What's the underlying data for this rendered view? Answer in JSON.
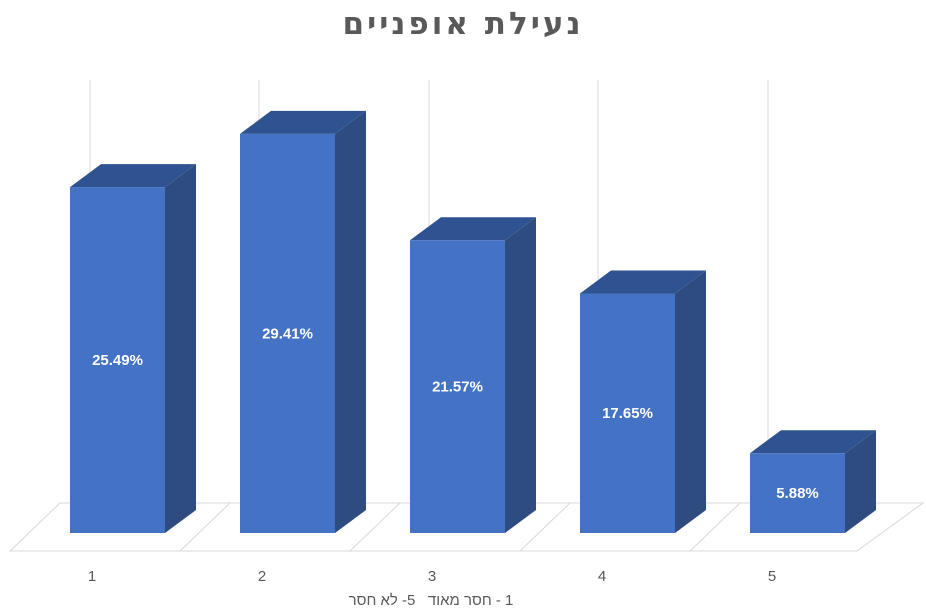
{
  "chart_data": {
    "type": "bar",
    "title": "נעילת אופניים",
    "xlabel": "1 - חסר מאוד   5- לא חסר",
    "ylabel": "",
    "categories": [
      "1",
      "2",
      "3",
      "4",
      "5"
    ],
    "values": [
      25.49,
      29.41,
      21.57,
      17.65,
      5.88
    ],
    "data_labels": [
      "25.49%",
      "29.41%",
      "21.57%",
      "17.65%",
      "5.88%"
    ],
    "unit": "%",
    "ylim": [
      0,
      35
    ],
    "style": "3d-column",
    "grid": true,
    "legend": "none",
    "colors": {
      "front": "#4472C4",
      "side": "#2F4C80",
      "top": "#2E5390",
      "grid": "#D9D9D9"
    }
  }
}
